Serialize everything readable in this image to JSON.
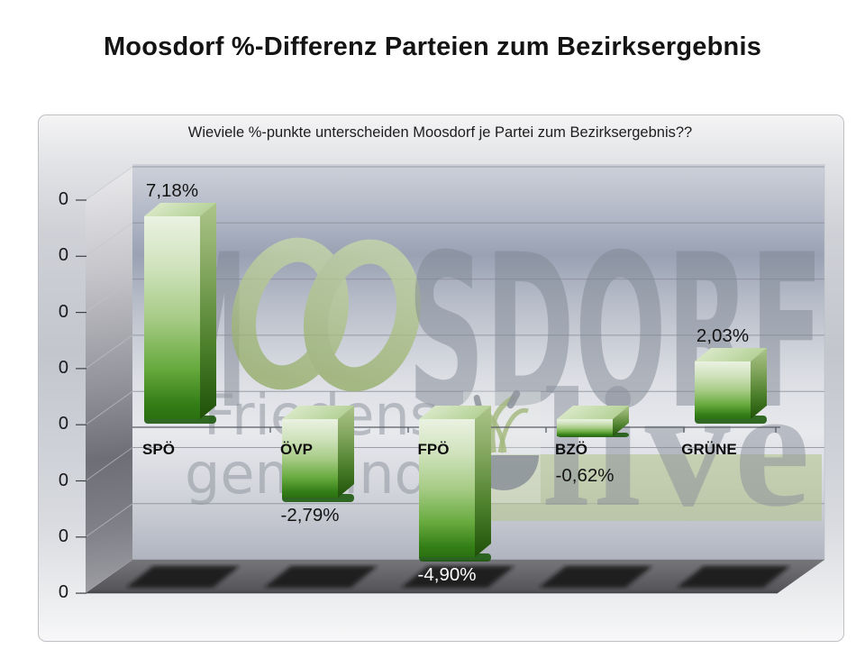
{
  "page": {
    "title": "Moosdorf  %-Differenz Parteien zum Bezirksergebnis"
  },
  "chart": {
    "subtitle": "Wieviele %-punkte unterscheiden Moosdorf je Partei zum Bezirksergebnis??"
  },
  "y_axis": {
    "tick_labels": [
      "0",
      "0",
      "0",
      "0",
      "0",
      "0",
      "0",
      "0"
    ]
  },
  "watermark": {
    "brand_prefix": "M",
    "brand_suffix": "SDORF",
    "line2": "Friedens-",
    "line3": "gemeinde",
    "live_text": "live"
  },
  "chart_data": {
    "type": "bar",
    "style": "3d-bar",
    "title": "Wieviele %-punkte unterscheiden Moosdorf je Partei zum Bezirksergebnis??",
    "categories": [
      "SPÖ",
      "ÖVP",
      "FPÖ",
      "BZÖ",
      "GRÜNE"
    ],
    "values": [
      7.18,
      -2.79,
      -4.9,
      -0.62,
      2.03
    ],
    "value_labels": [
      "7,18%",
      "-2,79%",
      "-4,90%",
      "-0,62%",
      "2,03%"
    ],
    "xlabel": "",
    "ylabel": "",
    "ylim": [
      -6,
      8
    ],
    "gridline_step_pct": 2,
    "y_tick_labels_shown": [
      "0",
      "0",
      "0",
      "0",
      "0",
      "0",
      "0",
      "0"
    ],
    "grid": true,
    "legend": "none",
    "bar_color": "#3f8c1d"
  },
  "colors": {
    "bar_top": "#e9f2e1",
    "bar_bottom": "#2b7011",
    "bar_side_dark": "#1e5108",
    "floor": "#5a5a5e",
    "wall_mid": "#6e6e76",
    "backwall_band": "#99a1b3",
    "watermark_green": "#a9bf7d",
    "watermark_gray": "#8d939e"
  }
}
